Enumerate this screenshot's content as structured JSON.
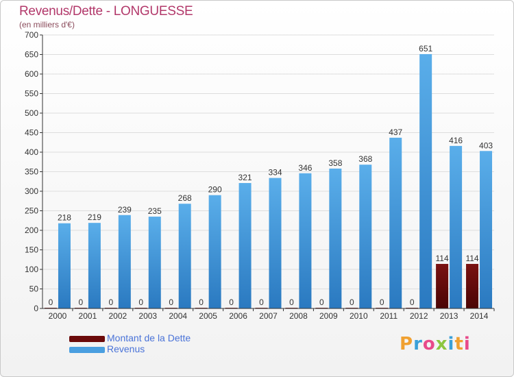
{
  "header": {
    "title": "Revenus/Dette - LONGUESSE",
    "subtitle": "(en milliers d'€)"
  },
  "logo": {
    "letters": [
      "P",
      "r",
      "o",
      "x",
      "i",
      "t",
      "i"
    ],
    "colors": [
      "#f0a030",
      "#3aa0d8",
      "#e84a8a",
      "#8cc63f",
      "#3aa0d8",
      "#f0a030",
      "#e84a8a"
    ]
  },
  "colors": {
    "dette": "#6b0a0a",
    "revenus": "#4a9fe0",
    "revenus_dark": "#2d7fc4",
    "grid": "#dddddd",
    "axis": "#333333"
  },
  "chart_data": {
    "type": "bar",
    "categories": [
      "2000",
      "2001",
      "2002",
      "2003",
      "2004",
      "2005",
      "2006",
      "2007",
      "2008",
      "2009",
      "2010",
      "2011",
      "2012",
      "2013",
      "2014"
    ],
    "series": [
      {
        "name": "Montant de la Dette",
        "values": [
          0,
          0,
          0,
          0,
          0,
          0,
          0,
          0,
          0,
          0,
          0,
          0,
          0,
          114,
          114
        ]
      },
      {
        "name": "Revenus",
        "values": [
          218,
          219,
          239,
          235,
          268,
          290,
          321,
          334,
          346,
          358,
          368,
          437,
          651,
          416,
          403
        ]
      }
    ],
    "yticks": [
      "0",
      "50",
      "100",
      "150",
      "200",
      "250",
      "300",
      "350",
      "400",
      "450",
      "500",
      "550",
      "600",
      "650",
      "700"
    ],
    "ylim": [
      0,
      700
    ],
    "grid": true,
    "legend_position": "bottom-left"
  }
}
